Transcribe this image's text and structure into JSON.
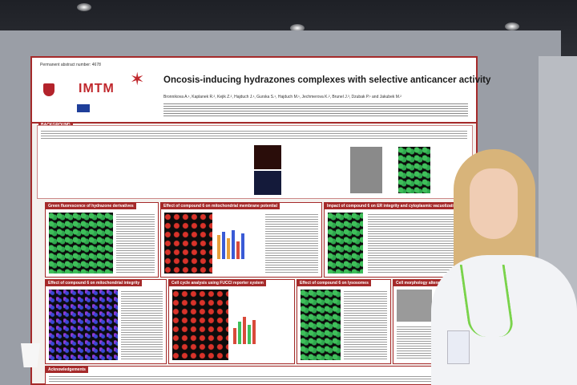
{
  "poster": {
    "abstract_number": "Permanent abstract number: 4678",
    "org": "IMTM",
    "title": "Oncosis-inducing hydrazones complexes with selective anticancer activity",
    "authors": "Bronnikova A.¹, Kaplanek R.², Kejik Z.², Hajduch J.¹, Gurska S.¹, Hajduch M.¹, Jechmerova K.², Brunel J.³, Dzubak P.¹ and Jakubek M.²",
    "sections": {
      "background": "BACKGROUND",
      "derivatives": "Green fluorescence of hydrazone derivatives",
      "membrane_potential": "Effect of compound 6 on mitochondrial membrane potential",
      "er_integrity": "Impact of compound 6 on ER integrity and cytoplasmic vacuolization independent of caspase activation",
      "mito_integrity": "Effect of compound 6 on mitochondrial integrity",
      "cell_cycle": "Cell cycle analysis using FUCCI reporter system",
      "lysosomes": "Effect of compound 6 on lysosomes",
      "morphology": "Cell morphology alterations after compound 6",
      "acknowledgements": "Acknowledgements"
    }
  }
}
